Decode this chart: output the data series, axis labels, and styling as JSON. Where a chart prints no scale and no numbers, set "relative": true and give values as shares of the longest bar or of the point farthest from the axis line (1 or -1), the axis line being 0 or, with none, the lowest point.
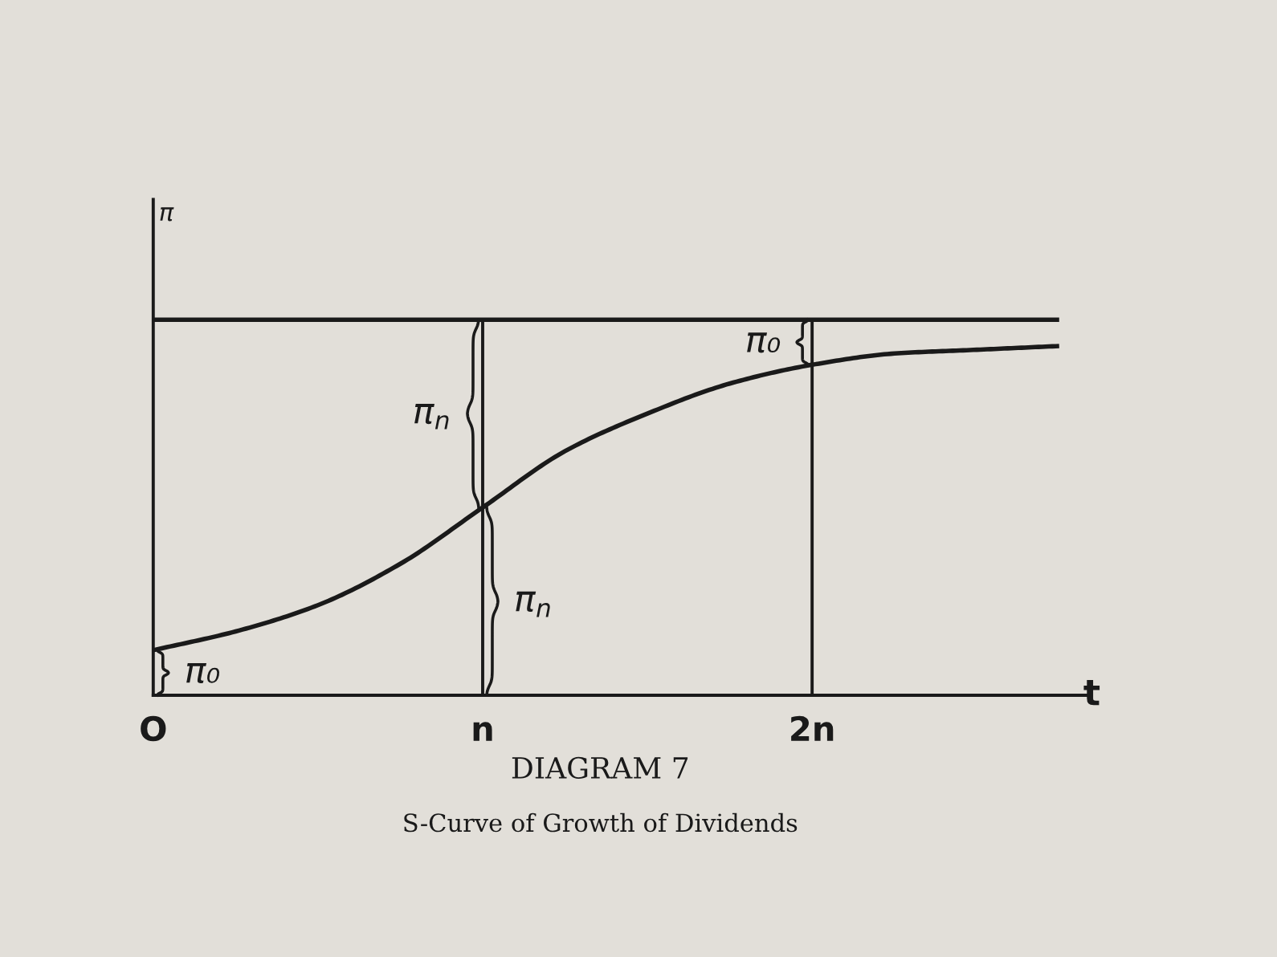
{
  "chart_data": {
    "type": "line",
    "title": "DIAGRAM 7",
    "subtitle": "S-Curve of Growth of Dividends",
    "xlabel": "t",
    "ylabel": "π",
    "relative": true,
    "categories": [
      "O",
      null,
      null,
      null,
      "n",
      null,
      null,
      null,
      "2n",
      null,
      null,
      null
    ],
    "series": [
      {
        "color": "#1a1a1a",
        "values": [
          1,
          1,
          1,
          1,
          1,
          1,
          1,
          1,
          1,
          1,
          1,
          1
        ]
      },
      {
        "color": "#1a1a1a",
        "values": [
          0.12,
          0.17,
          0.24,
          0.35,
          0.5,
          0.65,
          0.75,
          0.83,
          0.88,
          0.91,
          0.92,
          0.93
        ]
      }
    ],
    "ref_lines": [
      {
        "axis": "x",
        "value": "n"
      },
      {
        "axis": "x",
        "value": "2n"
      }
    ],
    "annotations": [
      {
        "text": "π₀",
        "x": "O",
        "y": 0.12
      },
      {
        "text": "π$_{n}$",
        "x": "n",
        "y": 0.25
      },
      {
        "text": "π$_{n}$",
        "x": "n",
        "y": 0.75
      },
      {
        "text": "π₀",
        "x": "2n",
        "y": 0.94
      }
    ],
    "grid": false,
    "marker": "none",
    "line_style": "solid"
  }
}
